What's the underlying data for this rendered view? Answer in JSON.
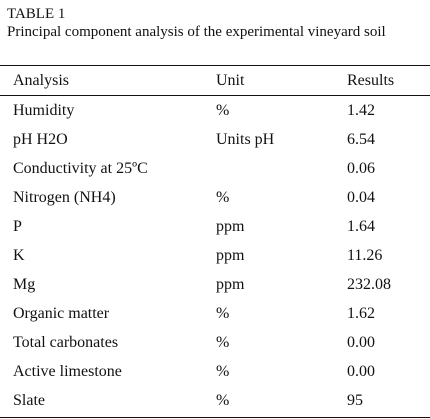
{
  "caption": {
    "label": "TABLE 1",
    "title": "Principal component analysis of the experimental vineyard soil"
  },
  "table": {
    "headers": [
      "Analysis",
      "Unit",
      "Results"
    ],
    "rows": [
      [
        "Humidity",
        "%",
        "1.42"
      ],
      [
        "pH H2O",
        "Units pH",
        "6.54"
      ],
      [
        "Conductivity at 25ºC",
        "",
        "0.06"
      ],
      [
        "Nitrogen (NH4)",
        "%",
        "0.04"
      ],
      [
        "P",
        "ppm",
        "1.64"
      ],
      [
        "K",
        "ppm",
        "11.26"
      ],
      [
        "Mg",
        "ppm",
        "232.08"
      ],
      [
        "Organic matter",
        "%",
        "1.62"
      ],
      [
        "Total carbonates",
        "%",
        "0.00"
      ],
      [
        "Active limestone",
        "%",
        "0.00"
      ],
      [
        "Slate",
        "%",
        "95"
      ]
    ]
  }
}
